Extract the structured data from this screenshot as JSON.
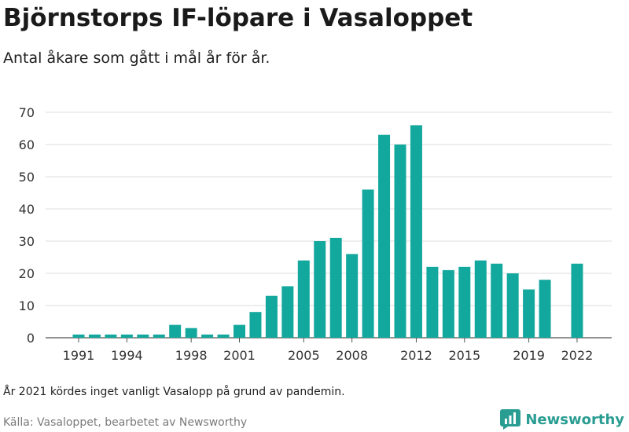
{
  "title": "Björnstorps IF-löpare i Vasaloppet",
  "subtitle": "Antal åkare som gått i mål år för år.",
  "note": "År 2021 kördes inget vanligt Vasalopp på grund av pandemin.",
  "source": "Källa: Vasaloppet, bearbetet av Newsworthy",
  "brand": {
    "name": "Newsworthy",
    "icon": "newsworthy-logo-icon",
    "color": "#2a9d92"
  },
  "chart_data": {
    "type": "bar",
    "title": "",
    "xlabel": "",
    "ylabel": "",
    "bar_color": "#13a89e",
    "grid": true,
    "ylim": [
      0,
      70
    ],
    "yticks": [
      0,
      10,
      20,
      30,
      40,
      50,
      60,
      70
    ],
    "xtick_labels": [
      "1991",
      "1994",
      "1998",
      "2001",
      "2005",
      "2008",
      "2012",
      "2015",
      "2019",
      "2022"
    ],
    "categories": [
      1991,
      1992,
      1993,
      1994,
      1995,
      1996,
      1997,
      1998,
      1999,
      2000,
      2001,
      2002,
      2003,
      2004,
      2005,
      2006,
      2007,
      2008,
      2009,
      2010,
      2011,
      2012,
      2013,
      2014,
      2015,
      2016,
      2017,
      2018,
      2019,
      2020,
      2021,
      2022
    ],
    "values": [
      1,
      1,
      1,
      1,
      1,
      1,
      4,
      3,
      1,
      1,
      4,
      8,
      13,
      16,
      24,
      30,
      31,
      26,
      46,
      63,
      60,
      66,
      22,
      21,
      22,
      24,
      23,
      20,
      15,
      18,
      null,
      23
    ]
  }
}
